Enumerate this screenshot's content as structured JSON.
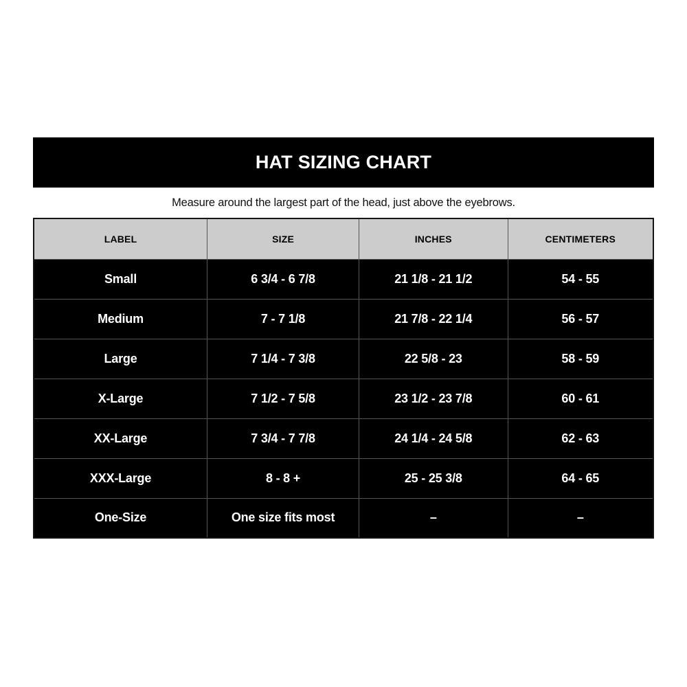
{
  "header": {
    "title": "HAT SIZING CHART",
    "subtitle": "Measure around the largest part of the head, just above the eyebrows."
  },
  "table": {
    "columns": [
      "LABEL",
      "SIZE",
      "INCHES",
      "CENTIMETERS"
    ],
    "rows": [
      [
        "Small",
        "6 3/4 - 6 7/8",
        "21 1/8 - 21 1/2",
        "54 - 55"
      ],
      [
        "Medium",
        "7 - 7 1/8",
        "21 7/8 - 22 1/4",
        "56 - 57"
      ],
      [
        "Large",
        "7 1/4 - 7 3/8",
        "22 5/8 - 23",
        "58 - 59"
      ],
      [
        "X-Large",
        "7 1/2 - 7 5/8",
        "23 1/2 - 23 7/8",
        "60 - 61"
      ],
      [
        "XX-Large",
        "7 3/4 - 7 7/8",
        "24 1/4 - 24 5/8",
        "62 - 63"
      ],
      [
        "XXX-Large",
        "8 - 8 +",
        "25 - 25 3/8",
        "64 - 65"
      ],
      [
        "One-Size",
        "One size fits most",
        "–",
        "–"
      ]
    ]
  },
  "colors": {
    "title_bar_bg": "#000000",
    "title_text": "#ffffff",
    "header_row_bg": "#cccccc",
    "header_text": "#000000",
    "row_bg": "#000000",
    "row_text": "#ffffff",
    "grid_line": "#545454",
    "page_bg": "#ffffff"
  },
  "chart_data": {
    "type": "table",
    "title": "HAT SIZING CHART",
    "subtitle": "Measure around the largest part of the head, just above the eyebrows.",
    "columns": [
      "LABEL",
      "SIZE",
      "INCHES",
      "CENTIMETERS"
    ],
    "rows": [
      [
        "Small",
        "6 3/4 - 6 7/8",
        "21 1/8 - 21 1/2",
        "54 - 55"
      ],
      [
        "Medium",
        "7 - 7 1/8",
        "21 7/8 - 22 1/4",
        "56 - 57"
      ],
      [
        "Large",
        "7 1/4 - 7 3/8",
        "22 5/8 - 23",
        "58 - 59"
      ],
      [
        "X-Large",
        "7 1/2 - 7 5/8",
        "23 1/2 - 23 7/8",
        "60 - 61"
      ],
      [
        "XX-Large",
        "7 3/4 - 7 7/8",
        "24 1/4 - 24 5/8",
        "62 - 63"
      ],
      [
        "XXX-Large",
        "8 - 8 +",
        "25 - 25 3/8",
        "64 - 65"
      ],
      [
        "One-Size",
        "One size fits most",
        "–",
        "–"
      ]
    ]
  }
}
